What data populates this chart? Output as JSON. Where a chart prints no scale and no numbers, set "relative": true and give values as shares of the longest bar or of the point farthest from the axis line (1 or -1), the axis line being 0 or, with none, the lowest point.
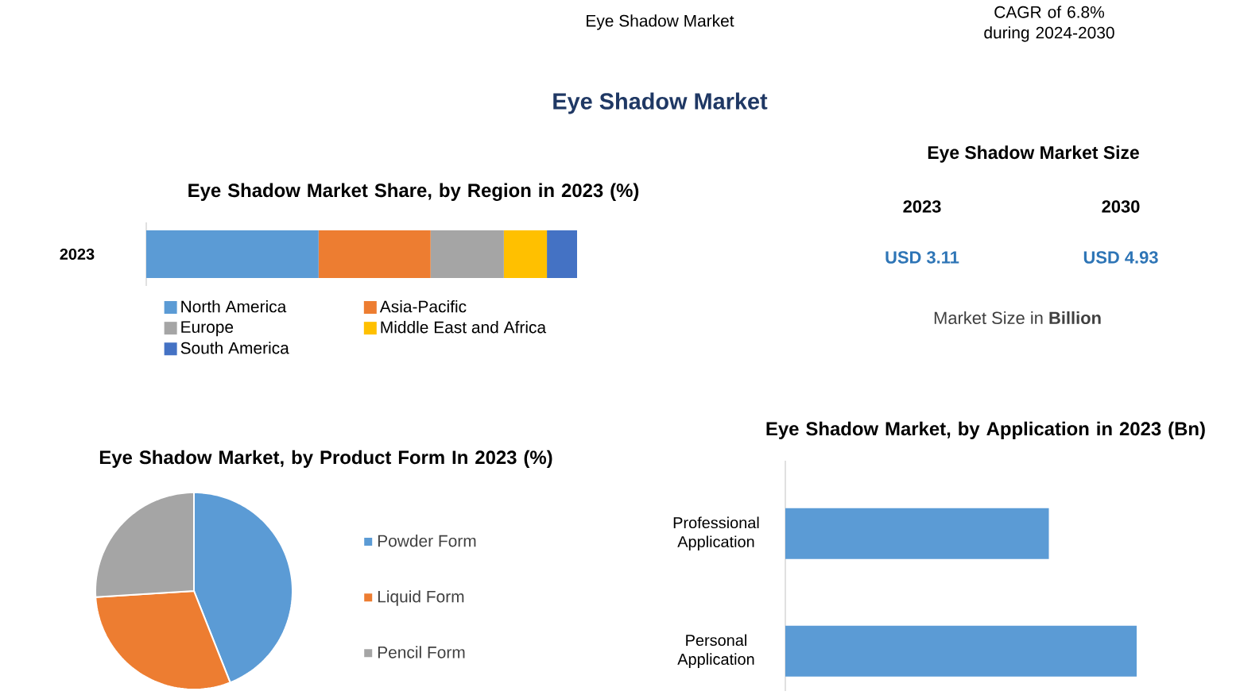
{
  "chart_data": [
    {
      "type": "other",
      "title": "Eye Shadow Market",
      "annotations": [
        "Eye Shadow Market",
        "CAGR of 6.8% during 2024-2030"
      ]
    },
    {
      "type": "bar",
      "orientation": "horizontal",
      "stacked": true,
      "relative": true,
      "title": "Eye Shadow Market Share, by Region in 2023 (%)",
      "categories": [
        "2023"
      ],
      "legend": "bottom",
      "series": [
        {
          "name": "North America",
          "color": "#5b9bd5",
          "values": [
            0.4
          ]
        },
        {
          "name": "Asia-Pacific",
          "color": "#ed7d31",
          "values": [
            0.26
          ]
        },
        {
          "name": "Europe",
          "color": "#a5a5a5",
          "values": [
            0.17
          ]
        },
        {
          "name": "Middle East and Africa",
          "color": "#ffc000",
          "values": [
            0.1
          ]
        },
        {
          "name": "South America",
          "color": "#4472c4",
          "values": [
            0.07
          ]
        }
      ]
    },
    {
      "type": "other",
      "title": "Eye Shadow Market Size",
      "annotations": [
        "2023",
        "2030",
        "USD 3.11",
        "USD 4.93",
        "Market Size in **Billion**"
      ]
    },
    {
      "type": "pie",
      "title": "Eye Shadow Market, by Product Form In 2023 (%)",
      "legend": "right",
      "categories": [
        "Powder Form",
        "Liquid Form",
        "Pencil Form"
      ],
      "values": [
        44,
        30,
        26
      ],
      "colors": [
        "#5b9bd5",
        "#ed7d31",
        "#a5a5a5"
      ]
    },
    {
      "type": "bar",
      "orientation": "horizontal",
      "relative": true,
      "title": "Eye Shadow Market, by Application in 2023 (Bn)",
      "categories": [
        "Professional Application",
        "Personal Application"
      ],
      "values": [
        0.75,
        1
      ],
      "color": "#5b9bd5"
    }
  ]
}
